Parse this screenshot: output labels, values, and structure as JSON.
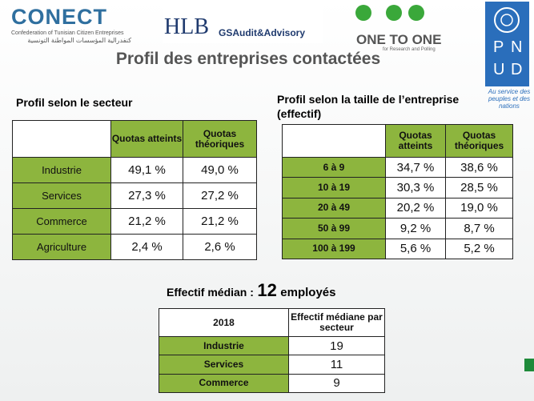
{
  "header": {
    "conect": {
      "name": "CONECT",
      "subtitle": "Confederation of Tunisian Citizen Entreprises",
      "arabic": "كنفدرالية المؤسسات المواطنة التونسية"
    },
    "hlb": {
      "name": "HLB",
      "sub": "GSAudit&Advisory"
    },
    "one_to_one": {
      "name": "ONE TO ONE",
      "sub": "for Research and Polling"
    },
    "pnud": {
      "letters": [
        "P",
        "N",
        "U",
        "D"
      ],
      "tagline": "Au service des peuples et des nations"
    },
    "title": "Profil des entreprises contactées"
  },
  "sector_table": {
    "title": "Profil selon le secteur",
    "columns": [
      "Quotas atteints",
      "Quotas théoriques"
    ],
    "rows": [
      [
        "Industrie",
        "49,1 %",
        "49,0 %"
      ],
      [
        "Services",
        "27,3 %",
        "27,2 %"
      ],
      [
        "Commerce",
        "21,2 %",
        "21,2 %"
      ],
      [
        "Agriculture",
        "2,4 %",
        "2,6 %"
      ]
    ]
  },
  "size_table": {
    "title": "Profil selon la taille de l’entreprise (effectif)",
    "columns": [
      "Quotas atteints",
      "Quotas théoriques"
    ],
    "rows": [
      [
        "6 à 9",
        "34,7 %",
        "38,6 %"
      ],
      [
        "10 à 19",
        "30,3 %",
        "28,5 %"
      ],
      [
        "20 à 49",
        "20,2 %",
        "19,0 %"
      ],
      [
        "50 à 99",
        "9,2 %",
        "8,7 %"
      ],
      [
        "100 à 199",
        "5,6 %",
        "5,2 %"
      ]
    ]
  },
  "median": {
    "label": "Effectif médian :",
    "value": "12",
    "unit": "employés"
  },
  "median_table": {
    "year": "2018",
    "column": "Effectif médiane par secteur",
    "rows": [
      [
        "Industrie",
        "19"
      ],
      [
        "Services",
        "11"
      ],
      [
        "Commerce",
        "9"
      ]
    ]
  }
}
